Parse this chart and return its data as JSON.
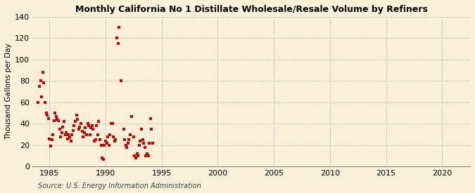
{
  "title": "Monthly California No 1 Distillate Wholesale/Resale Volume by Refiners",
  "ylabel": "Thousand Gallons per Day",
  "source": "Source: U.S. Energy Information Administration",
  "background_color": "#faf0d7",
  "plot_bg_color": "#faf0d7",
  "dot_color": "#cc0000",
  "grid_color": "#b0b0b0",
  "xlim": [
    1983.5,
    2022.5
  ],
  "ylim": [
    0,
    140
  ],
  "xticks": [
    1985,
    1990,
    1995,
    2000,
    2005,
    2010,
    2015,
    2020
  ],
  "yticks": [
    0,
    20,
    40,
    60,
    80,
    100,
    120,
    140
  ],
  "scatter_x": [
    1984.0,
    1984.1,
    1984.2,
    1984.3,
    1984.4,
    1984.5,
    1984.6,
    1984.7,
    1984.8,
    1984.9,
    1985.0,
    1985.1,
    1985.2,
    1985.3,
    1985.4,
    1985.5,
    1985.6,
    1985.7,
    1985.8,
    1985.9,
    1986.0,
    1986.1,
    1986.2,
    1986.3,
    1986.4,
    1986.5,
    1986.6,
    1986.7,
    1986.8,
    1986.9,
    1987.0,
    1987.1,
    1987.2,
    1987.3,
    1987.4,
    1987.5,
    1987.6,
    1987.7,
    1987.8,
    1987.9,
    1988.0,
    1988.1,
    1988.2,
    1988.3,
    1988.4,
    1988.5,
    1988.6,
    1988.7,
    1988.8,
    1988.9,
    1989.0,
    1989.1,
    1989.2,
    1989.3,
    1989.4,
    1989.5,
    1989.6,
    1989.7,
    1989.8,
    1989.9,
    1990.0,
    1990.1,
    1990.2,
    1990.3,
    1990.4,
    1990.5,
    1990.6,
    1990.7,
    1990.8,
    1990.9,
    1991.0,
    1991.1,
    1991.2,
    1991.4,
    1991.6,
    1991.7,
    1991.8,
    1991.9,
    1992.0,
    1992.1,
    1992.2,
    1992.3,
    1992.5,
    1992.6,
    1992.7,
    1992.8,
    1992.9,
    1993.0,
    1993.1,
    1993.2,
    1993.3,
    1993.4,
    1993.5,
    1993.6,
    1993.7,
    1993.8,
    1993.9,
    1994.0,
    1994.1,
    1994.2
  ],
  "scatter_y": [
    60,
    75,
    80,
    65,
    88,
    78,
    60,
    50,
    48,
    45,
    26,
    19,
    25,
    30,
    43,
    50,
    47,
    44,
    43,
    35,
    28,
    32,
    37,
    42,
    30,
    32,
    26,
    30,
    27,
    24,
    30,
    34,
    38,
    42,
    48,
    44,
    35,
    37,
    40,
    33,
    28,
    32,
    36,
    30,
    40,
    38,
    30,
    36,
    38,
    35,
    24,
    25,
    38,
    30,
    42,
    25,
    20,
    8,
    7,
    20,
    24,
    22,
    28,
    20,
    30,
    40,
    40,
    28,
    24,
    25,
    120,
    115,
    130,
    80,
    35,
    25,
    20,
    18,
    22,
    25,
    30,
    47,
    28,
    10,
    8,
    12,
    10,
    20,
    24,
    35,
    25,
    22,
    18,
    10,
    12,
    10,
    22,
    45,
    35,
    22
  ]
}
